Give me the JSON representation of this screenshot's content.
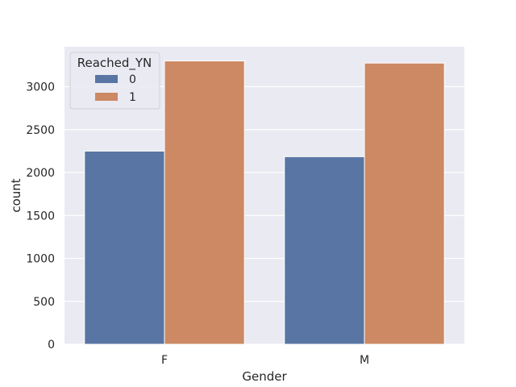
{
  "chart_data": {
    "type": "bar",
    "title": "",
    "xlabel": "Gender",
    "ylabel": "count",
    "categories": [
      "F",
      "M"
    ],
    "series": [
      {
        "name": "0",
        "values": [
          2250,
          2185
        ]
      },
      {
        "name": "1",
        "values": [
          3300,
          3275
        ]
      }
    ],
    "ylim": [
      0,
      3465
    ],
    "yticks": [
      0,
      500,
      1000,
      1500,
      2000,
      2500,
      3000
    ],
    "grid": true,
    "legend": {
      "title": "Reached_YN",
      "placement": "top-left"
    },
    "colors": {
      "series": [
        "#5875a4",
        "#cc8963"
      ],
      "plot_background": "#eaeaf2",
      "grid": "#ffffff"
    }
  }
}
